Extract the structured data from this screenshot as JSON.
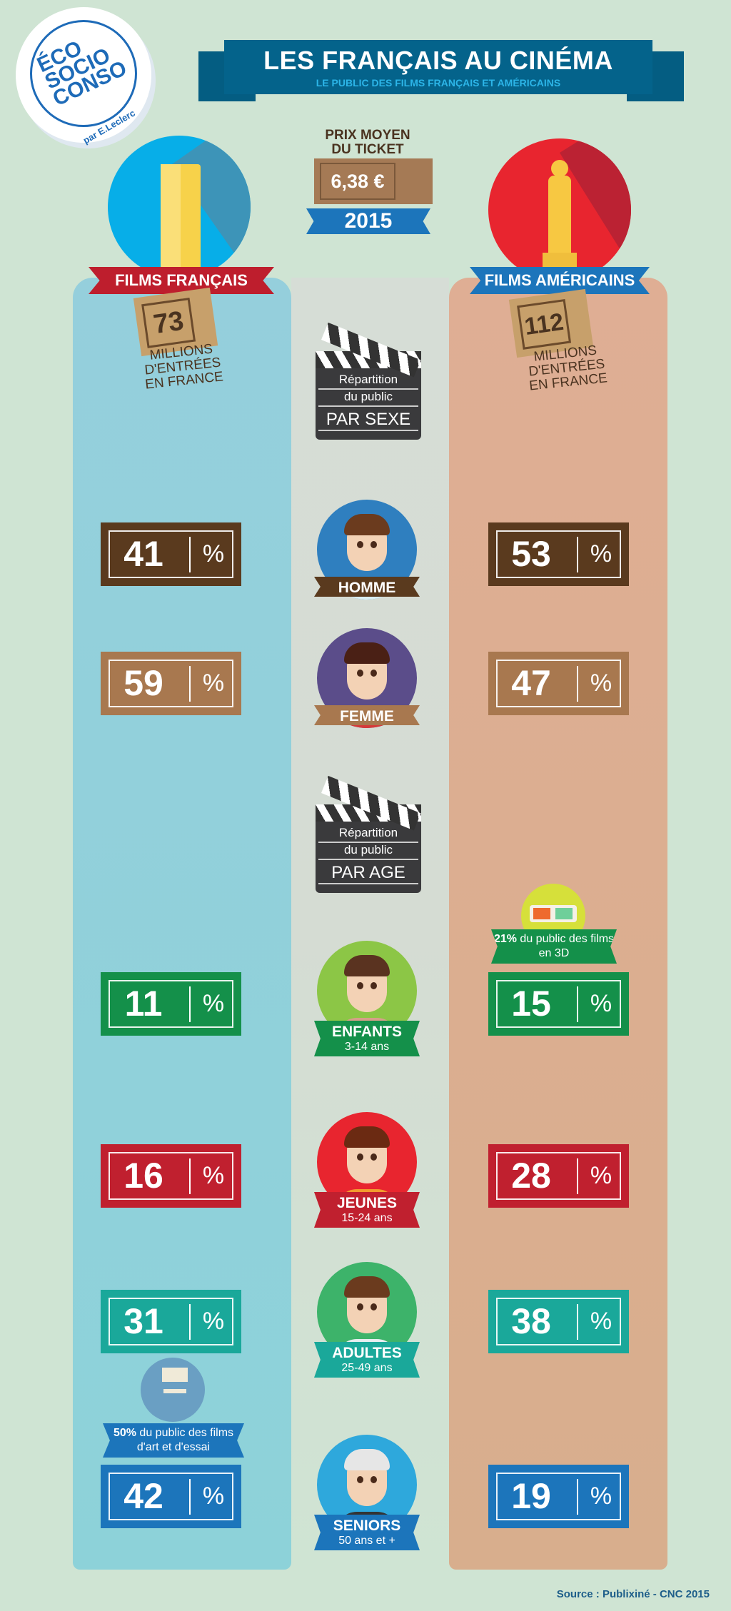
{
  "logo": {
    "text": "ÉCO SOCIO CONSO",
    "by": "par E.Leclerc"
  },
  "header": {
    "title": "LES FRANÇAIS AU CINÉMA",
    "subtitle": "LE PUBLIC DES FILMS FRANÇAIS ET AMÉRICAINS"
  },
  "ticket_price": {
    "label_line1": "PRIX MOYEN",
    "label_line2": "DU TICKET",
    "value": "6,38 €",
    "year": "2015"
  },
  "french": {
    "title": "FILMS FRANÇAIS",
    "entries": "73",
    "entries_label": [
      "MILLIONS",
      "D'ENTRÉES",
      "EN FRANCE"
    ],
    "color": "#8fd0da"
  },
  "american": {
    "title": "FILMS AMÉRICAINS",
    "entries": "112",
    "entries_label": [
      "MILLIONS",
      "D'ENTRÉES",
      "EN FRANCE"
    ],
    "color": "#dcae90"
  },
  "sections": {
    "sex": {
      "line1": "Répartition",
      "line2": "du public",
      "line3": "PAR SEXE"
    },
    "age": {
      "line1": "Répartition",
      "line2": "du public",
      "line3": "PAR AGE"
    }
  },
  "percent_sign": "%",
  "rows": [
    {
      "label": "HOMME",
      "sub": "",
      "fr": "41",
      "us": "53",
      "color": "#5a3a1e",
      "bg": "#2f7fbf",
      "hair": "#6b3b1e",
      "shirt": "#d9eef3"
    },
    {
      "label": "FEMME",
      "sub": "",
      "fr": "59",
      "us": "47",
      "color": "#a8784f",
      "bg": "#5b4d8a",
      "hair": "#4a2015",
      "shirt": "#d63a3a"
    },
    {
      "label": "ENFANTS",
      "sub": "3-14 ans",
      "fr": "11",
      "us": "15",
      "color": "#14904a",
      "bg": "#8cc646",
      "hair": "#5a3320",
      "shirt": "#d6a088"
    },
    {
      "label": "JEUNES",
      "sub": "15-24 ans",
      "fr": "16",
      "us": "28",
      "color": "#c0202f",
      "bg": "#e8252f",
      "hair": "#6b2a12",
      "shirt": "#f29a2e"
    },
    {
      "label": "ADULTES",
      "sub": "25-49 ans",
      "fr": "31",
      "us": "38",
      "color": "#1aa89a",
      "bg": "#3db36a",
      "hair": "#6b3b1e",
      "shirt": "#e6eef0"
    },
    {
      "label": "SENIORS",
      "sub": "50 ans et +",
      "fr": "42",
      "us": "19",
      "color": "#1c75bb",
      "bg": "#2ea8dc",
      "hair": "#e6e6e6",
      "shirt": "#333333"
    }
  ],
  "notes": {
    "us_3d": {
      "bold": "21%",
      "text": " du public des films en 3D"
    },
    "fr_art": {
      "bold": "50%",
      "text": " du public des films d'art et d'essai"
    }
  },
  "source": "Source : Publixiné - CNC 2015"
}
